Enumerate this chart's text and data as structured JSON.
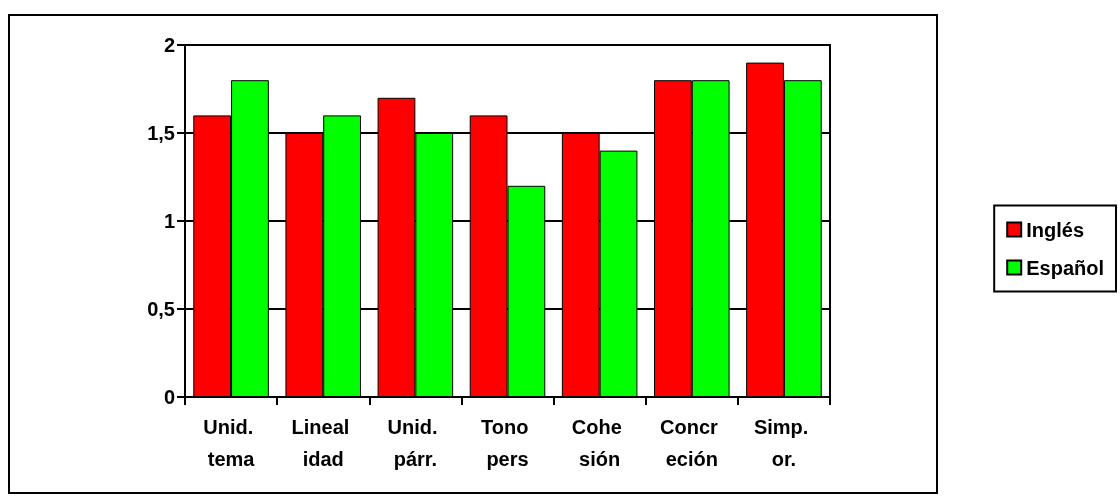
{
  "chart_data": {
    "type": "bar",
    "categories": [
      "Unid. tema",
      "Lineal idad",
      "Unid. párr.",
      "Tono pers",
      "Cohe sión",
      "Concr eción",
      "Simp. or."
    ],
    "series": [
      {
        "name": "Inglés",
        "color": "#ff0000",
        "values": [
          1.6,
          1.5,
          1.7,
          1.6,
          1.5,
          1.8,
          1.9
        ]
      },
      {
        "name": "Español",
        "color": "#00ff00",
        "values": [
          1.8,
          1.6,
          1.5,
          1.2,
          1.4,
          1.8,
          1.8
        ]
      }
    ],
    "ylim": [
      0,
      2
    ],
    "yticks": [
      0,
      {
        "value": 0.5,
        "label": "0,5"
      },
      1,
      {
        "value": 1.5,
        "label": "1,5"
      },
      2
    ],
    "grid": "y",
    "legend": "right"
  }
}
